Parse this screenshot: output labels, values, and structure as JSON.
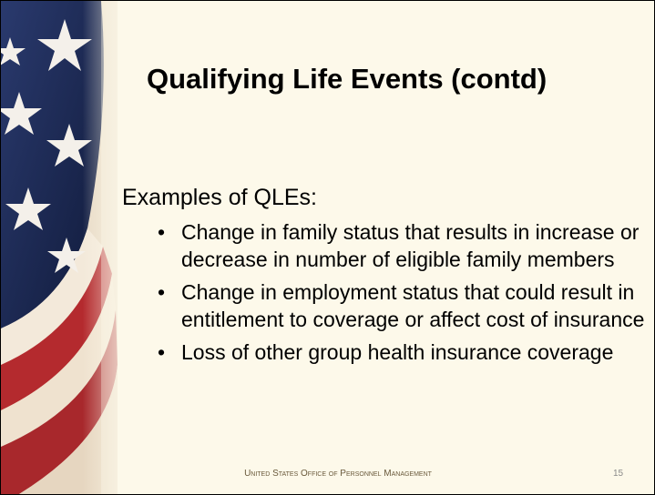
{
  "title": "Qualifying Life Events (contd)",
  "intro": "Examples of QLEs:",
  "bullets": [
    "Change in family status that results in increase or decrease in number of eligible family members",
    "Change in employment status that could result in entitlement to coverage or affect cost of insurance",
    "Loss of other group health insurance coverage"
  ],
  "footer": "United States Office of Personnel Management",
  "page_number": "15"
}
